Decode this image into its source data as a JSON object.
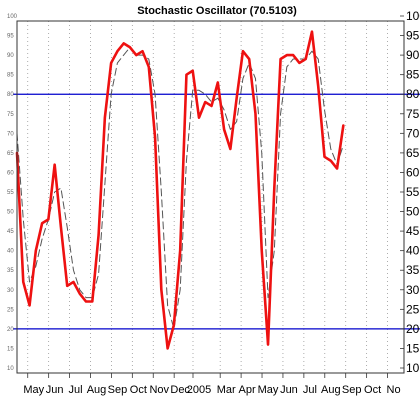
{
  "chart_data": {
    "type": "line",
    "title": "Stochastic Oscillator (70.5103)",
    "xlabel": "",
    "ylabel": "",
    "ylim": [
      10,
      100
    ],
    "y_ticks": [
      10,
      15,
      20,
      25,
      30,
      35,
      40,
      45,
      50,
      55,
      60,
      65,
      70,
      75,
      80,
      85,
      90,
      95,
      100
    ],
    "x_tick_labels": [
      "May",
      "Jun",
      "Jul",
      "Aug",
      "Sep",
      "Oct",
      "Nov",
      "Dec",
      "2005",
      "Mar",
      "Apr",
      "May",
      "Jun",
      "Jul",
      "Aug",
      "Sep",
      "Oct",
      "No"
    ],
    "x_ticks": [
      0.8,
      1.8,
      2.8,
      3.8,
      4.8,
      5.8,
      6.8,
      7.8,
      8.7,
      10.0,
      11.0,
      12.0,
      13.0,
      14.0,
      15.0,
      16.0,
      17.0,
      18.0
    ],
    "xlim": [
      0,
      18.5
    ],
    "reference_lines": [
      {
        "value": 80,
        "color": "#0000cc"
      },
      {
        "value": 20,
        "color": "#0000cc"
      }
    ],
    "grid": true,
    "series": [
      {
        "style": "solid",
        "color": "#ee1111",
        "x": [
          0.0,
          0.3,
          0.6,
          0.9,
          1.2,
          1.5,
          1.8,
          2.1,
          2.4,
          2.7,
          3.0,
          3.3,
          3.6,
          3.9,
          4.2,
          4.5,
          4.8,
          5.1,
          5.4,
          5.7,
          6.0,
          6.3,
          6.6,
          6.9,
          7.2,
          7.5,
          7.8,
          8.1,
          8.4,
          8.7,
          9.0,
          9.3,
          9.6,
          9.9,
          10.2,
          10.5,
          10.8,
          11.1,
          11.4,
          11.7,
          12.0,
          12.3,
          12.6,
          12.9,
          13.2,
          13.5,
          13.8,
          14.1,
          14.4,
          14.7,
          15.0,
          15.3,
          15.6
        ],
        "values": [
          65,
          32,
          26,
          40,
          47,
          48,
          62,
          46,
          31,
          32,
          29,
          27,
          27,
          44,
          74,
          88,
          91,
          93,
          92,
          90,
          91,
          87,
          69,
          30,
          15,
          21,
          40,
          85,
          86,
          74,
          78,
          77,
          83,
          71,
          66,
          79,
          91,
          89,
          75,
          40,
          16,
          56,
          89,
          90,
          90,
          88,
          89,
          96,
          82,
          64,
          63,
          61,
          72
        ]
      },
      {
        "style": "dashed",
        "color": "#555555",
        "x": [
          0.0,
          0.3,
          0.6,
          0.9,
          1.2,
          1.5,
          1.8,
          2.1,
          2.4,
          2.7,
          3.0,
          3.3,
          3.6,
          3.9,
          4.2,
          4.5,
          4.8,
          5.1,
          5.4,
          5.7,
          6.0,
          6.3,
          6.6,
          6.9,
          7.2,
          7.5,
          7.8,
          8.1,
          8.4,
          8.7,
          9.0,
          9.3,
          9.6,
          9.9,
          10.2,
          10.5,
          10.8,
          11.1,
          11.4,
          11.7,
          12.0,
          12.3,
          12.6,
          12.9,
          13.2,
          13.5,
          13.8,
          14.1,
          14.4,
          14.7,
          15.0,
          15.3,
          15.6
        ],
        "values": [
          70,
          48,
          32,
          36,
          43,
          48,
          55,
          56,
          46,
          35,
          30,
          28,
          28,
          34,
          57,
          80,
          88,
          90,
          92,
          90,
          90,
          89,
          80,
          55,
          26,
          20,
          30,
          63,
          81,
          81,
          80,
          78,
          79,
          76,
          71,
          73,
          84,
          88,
          84,
          65,
          28,
          40,
          75,
          87,
          89,
          89,
          89,
          91,
          89,
          76,
          66,
          62,
          67
        ]
      }
    ]
  }
}
